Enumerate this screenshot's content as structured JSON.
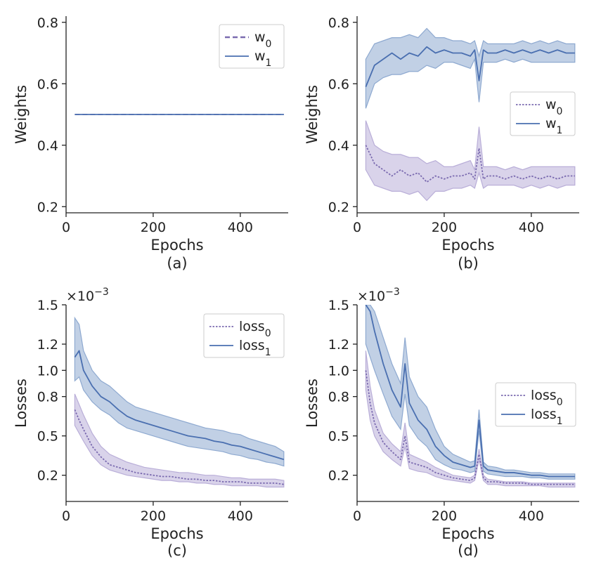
{
  "colors": {
    "w0": "#7b6bb0",
    "w1": "#4a6fb0",
    "band_w0": "#b9aed8",
    "band_w1": "#8ea9d0"
  },
  "chart_data": [
    {
      "panel": "a",
      "type": "line",
      "caption": "(a)",
      "xlabel": "Epochs",
      "ylabel": "Weights",
      "xlim": [
        0,
        510
      ],
      "ylim": [
        0.18,
        0.82
      ],
      "xticks": [
        0,
        200,
        400
      ],
      "xtick_labels": [
        "0",
        "200",
        "400"
      ],
      "yticks": [
        0.2,
        0.4,
        0.6,
        0.8
      ],
      "ytick_labels": [
        "0.2",
        "0.4",
        "0.6",
        "0.8"
      ],
      "sci_multiplier": "",
      "legend_position": "top-right",
      "series": [
        {
          "name": "w",
          "sub": "0",
          "key": "w0",
          "dash": "dashed",
          "x": [
            20,
            500
          ],
          "y": [
            0.5,
            0.5
          ],
          "band": null
        },
        {
          "name": "w",
          "sub": "1",
          "key": "w1",
          "dash": "solid",
          "x": [
            20,
            500
          ],
          "y": [
            0.5,
            0.5
          ],
          "band": null
        }
      ]
    },
    {
      "panel": "b",
      "type": "line",
      "caption": "(b)",
      "xlabel": "Epochs",
      "ylabel": "Weights",
      "xlim": [
        0,
        510
      ],
      "ylim": [
        0.18,
        0.82
      ],
      "xticks": [
        0,
        200,
        400
      ],
      "xtick_labels": [
        "0",
        "200",
        "400"
      ],
      "yticks": [
        0.2,
        0.4,
        0.6,
        0.8
      ],
      "ytick_labels": [
        "0.2",
        "0.4",
        "0.6",
        "0.8"
      ],
      "sci_multiplier": "",
      "legend_position": "center-right",
      "series": [
        {
          "name": "w",
          "sub": "0",
          "key": "w0",
          "dash": "dotted",
          "x": [
            20,
            40,
            60,
            80,
            100,
            120,
            140,
            160,
            180,
            200,
            220,
            240,
            260,
            270,
            280,
            290,
            300,
            320,
            340,
            360,
            380,
            400,
            420,
            440,
            460,
            480,
            500
          ],
          "y": [
            0.4,
            0.34,
            0.32,
            0.3,
            0.32,
            0.3,
            0.31,
            0.28,
            0.3,
            0.29,
            0.3,
            0.3,
            0.31,
            0.29,
            0.39,
            0.29,
            0.3,
            0.3,
            0.29,
            0.3,
            0.29,
            0.3,
            0.29,
            0.3,
            0.29,
            0.3,
            0.3
          ],
          "band": {
            "upper": [
              0.48,
              0.4,
              0.38,
              0.37,
              0.37,
              0.36,
              0.36,
              0.34,
              0.35,
              0.33,
              0.33,
              0.34,
              0.35,
              0.32,
              0.46,
              0.33,
              0.33,
              0.33,
              0.32,
              0.33,
              0.32,
              0.33,
              0.33,
              0.33,
              0.33,
              0.33,
              0.33
            ],
            "lower": [
              0.32,
              0.27,
              0.26,
              0.25,
              0.25,
              0.24,
              0.25,
              0.22,
              0.25,
              0.25,
              0.26,
              0.26,
              0.27,
              0.26,
              0.31,
              0.26,
              0.27,
              0.27,
              0.27,
              0.27,
              0.26,
              0.27,
              0.26,
              0.27,
              0.26,
              0.27,
              0.27
            ]
          }
        },
        {
          "name": "w",
          "sub": "1",
          "key": "w1",
          "dash": "solid",
          "x": [
            20,
            40,
            60,
            80,
            100,
            120,
            140,
            160,
            180,
            200,
            220,
            240,
            260,
            270,
            280,
            290,
            300,
            320,
            340,
            360,
            380,
            400,
            420,
            440,
            460,
            480,
            500
          ],
          "y": [
            0.59,
            0.66,
            0.68,
            0.7,
            0.68,
            0.7,
            0.69,
            0.72,
            0.7,
            0.71,
            0.7,
            0.7,
            0.69,
            0.71,
            0.61,
            0.71,
            0.7,
            0.7,
            0.71,
            0.7,
            0.71,
            0.7,
            0.71,
            0.7,
            0.71,
            0.7,
            0.7
          ],
          "band": {
            "upper": [
              0.68,
              0.73,
              0.74,
              0.75,
              0.75,
              0.76,
              0.75,
              0.78,
              0.75,
              0.75,
              0.74,
              0.74,
              0.73,
              0.74,
              0.69,
              0.74,
              0.73,
              0.73,
              0.73,
              0.73,
              0.74,
              0.73,
              0.74,
              0.73,
              0.74,
              0.73,
              0.73
            ],
            "lower": [
              0.52,
              0.6,
              0.62,
              0.63,
              0.63,
              0.64,
              0.64,
              0.66,
              0.65,
              0.67,
              0.67,
              0.66,
              0.65,
              0.68,
              0.54,
              0.67,
              0.67,
              0.67,
              0.68,
              0.67,
              0.68,
              0.67,
              0.67,
              0.67,
              0.67,
              0.67,
              0.67
            ]
          }
        }
      ]
    },
    {
      "panel": "c",
      "type": "line",
      "caption": "(c)",
      "xlabel": "Epochs",
      "ylabel": "Losses",
      "xlim": [
        0,
        510
      ],
      "ylim": [
        0.0,
        1.5
      ],
      "xticks": [
        0,
        200,
        400
      ],
      "xtick_labels": [
        "0",
        "200",
        "400"
      ],
      "yticks": [
        0.2,
        0.5,
        0.8,
        1.0,
        1.2,
        1.5
      ],
      "ytick_labels": [
        "0.2",
        "0.5",
        "0.8",
        "1.0",
        "1.2",
        "1.5"
      ],
      "sci_multiplier": "×10",
      "sci_exponent": "−3",
      "legend_position": "top-right",
      "series": [
        {
          "name": "loss",
          "sub": "0",
          "key": "w0",
          "dash": "dotted",
          "x": [
            20,
            30,
            40,
            60,
            80,
            100,
            120,
            140,
            160,
            180,
            200,
            220,
            240,
            260,
            280,
            300,
            320,
            340,
            360,
            380,
            400,
            420,
            440,
            460,
            480,
            500
          ],
          "y": [
            0.7,
            0.62,
            0.55,
            0.42,
            0.34,
            0.28,
            0.26,
            0.24,
            0.22,
            0.21,
            0.2,
            0.19,
            0.19,
            0.18,
            0.17,
            0.17,
            0.16,
            0.16,
            0.15,
            0.15,
            0.15,
            0.14,
            0.14,
            0.14,
            0.14,
            0.13
          ],
          "band": {
            "upper": [
              0.82,
              0.74,
              0.66,
              0.52,
              0.42,
              0.36,
              0.33,
              0.3,
              0.28,
              0.26,
              0.25,
              0.24,
              0.23,
              0.22,
              0.22,
              0.21,
              0.2,
              0.2,
              0.19,
              0.18,
              0.18,
              0.17,
              0.17,
              0.17,
              0.17,
              0.16
            ],
            "lower": [
              0.58,
              0.52,
              0.46,
              0.35,
              0.28,
              0.24,
              0.22,
              0.2,
              0.19,
              0.18,
              0.17,
              0.16,
              0.16,
              0.15,
              0.15,
              0.14,
              0.14,
              0.13,
              0.13,
              0.12,
              0.12,
              0.12,
              0.12,
              0.11,
              0.11,
              0.11
            ]
          }
        },
        {
          "name": "loss",
          "sub": "1",
          "key": "w1",
          "dash": "solid",
          "x": [
            20,
            30,
            40,
            60,
            80,
            100,
            120,
            140,
            160,
            180,
            200,
            220,
            240,
            260,
            280,
            300,
            320,
            340,
            360,
            380,
            400,
            420,
            440,
            460,
            480,
            500
          ],
          "y": [
            1.1,
            1.15,
            1.0,
            0.88,
            0.8,
            0.76,
            0.7,
            0.65,
            0.62,
            0.6,
            0.58,
            0.56,
            0.54,
            0.52,
            0.5,
            0.49,
            0.48,
            0.46,
            0.45,
            0.43,
            0.42,
            0.4,
            0.38,
            0.36,
            0.34,
            0.32
          ],
          "band": {
            "upper": [
              1.4,
              1.35,
              1.15,
              1.0,
              0.92,
              0.88,
              0.82,
              0.76,
              0.72,
              0.7,
              0.68,
              0.66,
              0.64,
              0.62,
              0.6,
              0.58,
              0.56,
              0.55,
              0.54,
              0.52,
              0.51,
              0.48,
              0.46,
              0.44,
              0.42,
              0.38
            ],
            "lower": [
              0.92,
              0.95,
              0.85,
              0.76,
              0.7,
              0.66,
              0.6,
              0.56,
              0.54,
              0.52,
              0.5,
              0.48,
              0.46,
              0.44,
              0.42,
              0.41,
              0.4,
              0.39,
              0.38,
              0.36,
              0.35,
              0.33,
              0.32,
              0.3,
              0.29,
              0.27
            ]
          }
        }
      ]
    },
    {
      "panel": "d",
      "type": "line",
      "caption": "(d)",
      "xlabel": "Epochs",
      "ylabel": "Losses",
      "xlim": [
        0,
        510
      ],
      "ylim": [
        0.0,
        1.5
      ],
      "xticks": [
        0,
        200,
        400
      ],
      "xtick_labels": [
        "0",
        "200",
        "400"
      ],
      "yticks": [
        0.2,
        0.5,
        0.8,
        1.0,
        1.2,
        1.5
      ],
      "ytick_labels": [
        "0.2",
        "0.5",
        "0.8",
        "1.0",
        "1.2",
        "1.5"
      ],
      "sci_multiplier": "×10",
      "sci_exponent": "−3",
      "legend_position": "center-right",
      "series": [
        {
          "name": "loss",
          "sub": "0",
          "key": "w0",
          "dash": "dotted",
          "x": [
            20,
            30,
            40,
            60,
            80,
            100,
            110,
            120,
            140,
            160,
            180,
            200,
            220,
            240,
            260,
            270,
            280,
            290,
            300,
            320,
            340,
            360,
            380,
            400,
            420,
            440,
            460,
            480,
            500
          ],
          "y": [
            1.0,
            0.75,
            0.6,
            0.45,
            0.38,
            0.32,
            0.5,
            0.3,
            0.28,
            0.26,
            0.22,
            0.2,
            0.18,
            0.17,
            0.16,
            0.18,
            0.36,
            0.18,
            0.15,
            0.15,
            0.14,
            0.14,
            0.14,
            0.13,
            0.13,
            0.13,
            0.13,
            0.13,
            0.13
          ],
          "band": {
            "upper": [
              1.15,
              0.88,
              0.7,
              0.52,
              0.44,
              0.38,
              0.6,
              0.36,
              0.33,
              0.3,
              0.26,
              0.23,
              0.2,
              0.19,
              0.18,
              0.2,
              0.4,
              0.2,
              0.17,
              0.16,
              0.15,
              0.15,
              0.15,
              0.14,
              0.14,
              0.14,
              0.14,
              0.14,
              0.14
            ],
            "lower": [
              0.85,
              0.62,
              0.5,
              0.38,
              0.32,
              0.27,
              0.42,
              0.25,
              0.23,
              0.22,
              0.19,
              0.17,
              0.16,
              0.15,
              0.14,
              0.16,
              0.32,
              0.16,
              0.13,
              0.13,
              0.12,
              0.12,
              0.12,
              0.12,
              0.12,
              0.11,
              0.11,
              0.11,
              0.11
            ]
          }
        },
        {
          "name": "loss",
          "sub": "1",
          "key": "w1",
          "dash": "solid",
          "x": [
            20,
            30,
            40,
            60,
            80,
            100,
            110,
            120,
            140,
            160,
            180,
            200,
            220,
            240,
            260,
            270,
            280,
            290,
            300,
            320,
            340,
            360,
            380,
            400,
            420,
            440,
            460,
            480,
            500
          ],
          "y": [
            1.5,
            1.45,
            1.3,
            1.05,
            0.85,
            0.72,
            1.05,
            0.75,
            0.62,
            0.55,
            0.42,
            0.35,
            0.3,
            0.28,
            0.26,
            0.27,
            0.62,
            0.27,
            0.24,
            0.23,
            0.22,
            0.22,
            0.21,
            0.2,
            0.2,
            0.19,
            0.19,
            0.19,
            0.19
          ],
          "band": {
            "upper": [
              1.5,
              1.5,
              1.45,
              1.25,
              1.05,
              0.9,
              1.25,
              0.95,
              0.8,
              0.72,
              0.55,
              0.42,
              0.36,
              0.33,
              0.3,
              0.31,
              0.7,
              0.3,
              0.27,
              0.26,
              0.24,
              0.24,
              0.23,
              0.22,
              0.22,
              0.21,
              0.21,
              0.21,
              0.21
            ],
            "lower": [
              1.2,
              1.1,
              1.0,
              0.82,
              0.65,
              0.55,
              0.82,
              0.58,
              0.48,
              0.42,
              0.32,
              0.28,
              0.25,
              0.24,
              0.22,
              0.23,
              0.54,
              0.23,
              0.21,
              0.2,
              0.19,
              0.19,
              0.19,
              0.18,
              0.18,
              0.17,
              0.17,
              0.17,
              0.17
            ]
          }
        }
      ]
    }
  ]
}
